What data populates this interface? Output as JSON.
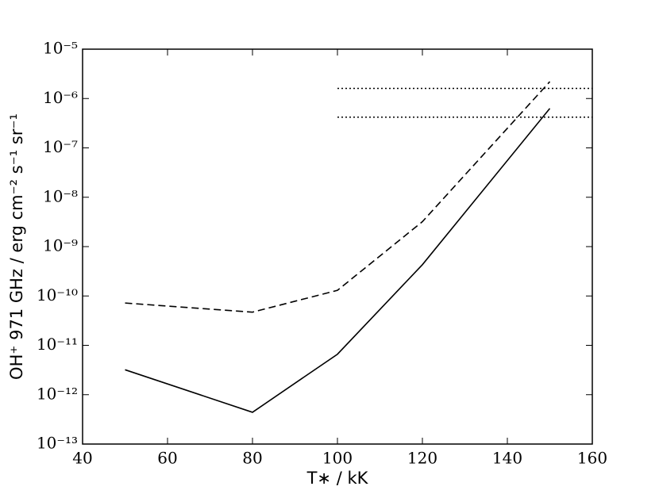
{
  "chart_data": {
    "type": "line",
    "x_label": "T∗ / kK",
    "y_label": "OH⁺ 971 GHz / erg cm⁻² s⁻¹ sr⁻¹",
    "x": [
      50,
      80,
      100,
      120,
      150
    ],
    "series": [
      {
        "color": "#000000",
        "dash": "solid",
        "values": [
          3.2e-12,
          4.4e-13,
          6.6e-12,
          4.3e-10,
          6.3e-07
        ]
      },
      {
        "color": "#000000",
        "dash": "dashed",
        "values": [
          7.2e-11,
          4.7e-11,
          1.3e-10,
          3.2e-09,
          2.2e-06
        ]
      }
    ],
    "reference_lines": [
      {
        "y": 1.6e-06,
        "x": [
          100,
          160
        ],
        "color": "#000000",
        "dash": "dotted"
      },
      {
        "y": 4.2e-07,
        "x": [
          100,
          160
        ],
        "color": "#000000",
        "dash": "dotted"
      }
    ],
    "xlim": [
      40,
      160
    ],
    "xticks": [
      40,
      60,
      80,
      100,
      120,
      140,
      160
    ],
    "ylim": [
      1e-13,
      1e-05
    ],
    "log_y": true,
    "yticks": [
      {
        "value": 1e-13,
        "label": "10⁻¹³"
      },
      {
        "value": 1e-12,
        "label": "10⁻¹²"
      },
      {
        "value": 1e-11,
        "label": "10⁻¹¹"
      },
      {
        "value": 1e-10,
        "label": "10⁻¹⁰"
      },
      {
        "value": 1e-09,
        "label": "10⁻⁹"
      },
      {
        "value": 1e-08,
        "label": "10⁻⁸"
      },
      {
        "value": 1e-07,
        "label": "10⁻⁷"
      },
      {
        "value": 1e-06,
        "label": "10⁻⁶"
      },
      {
        "value": 1e-05,
        "label": "10⁻⁵"
      }
    ],
    "grid": false
  }
}
